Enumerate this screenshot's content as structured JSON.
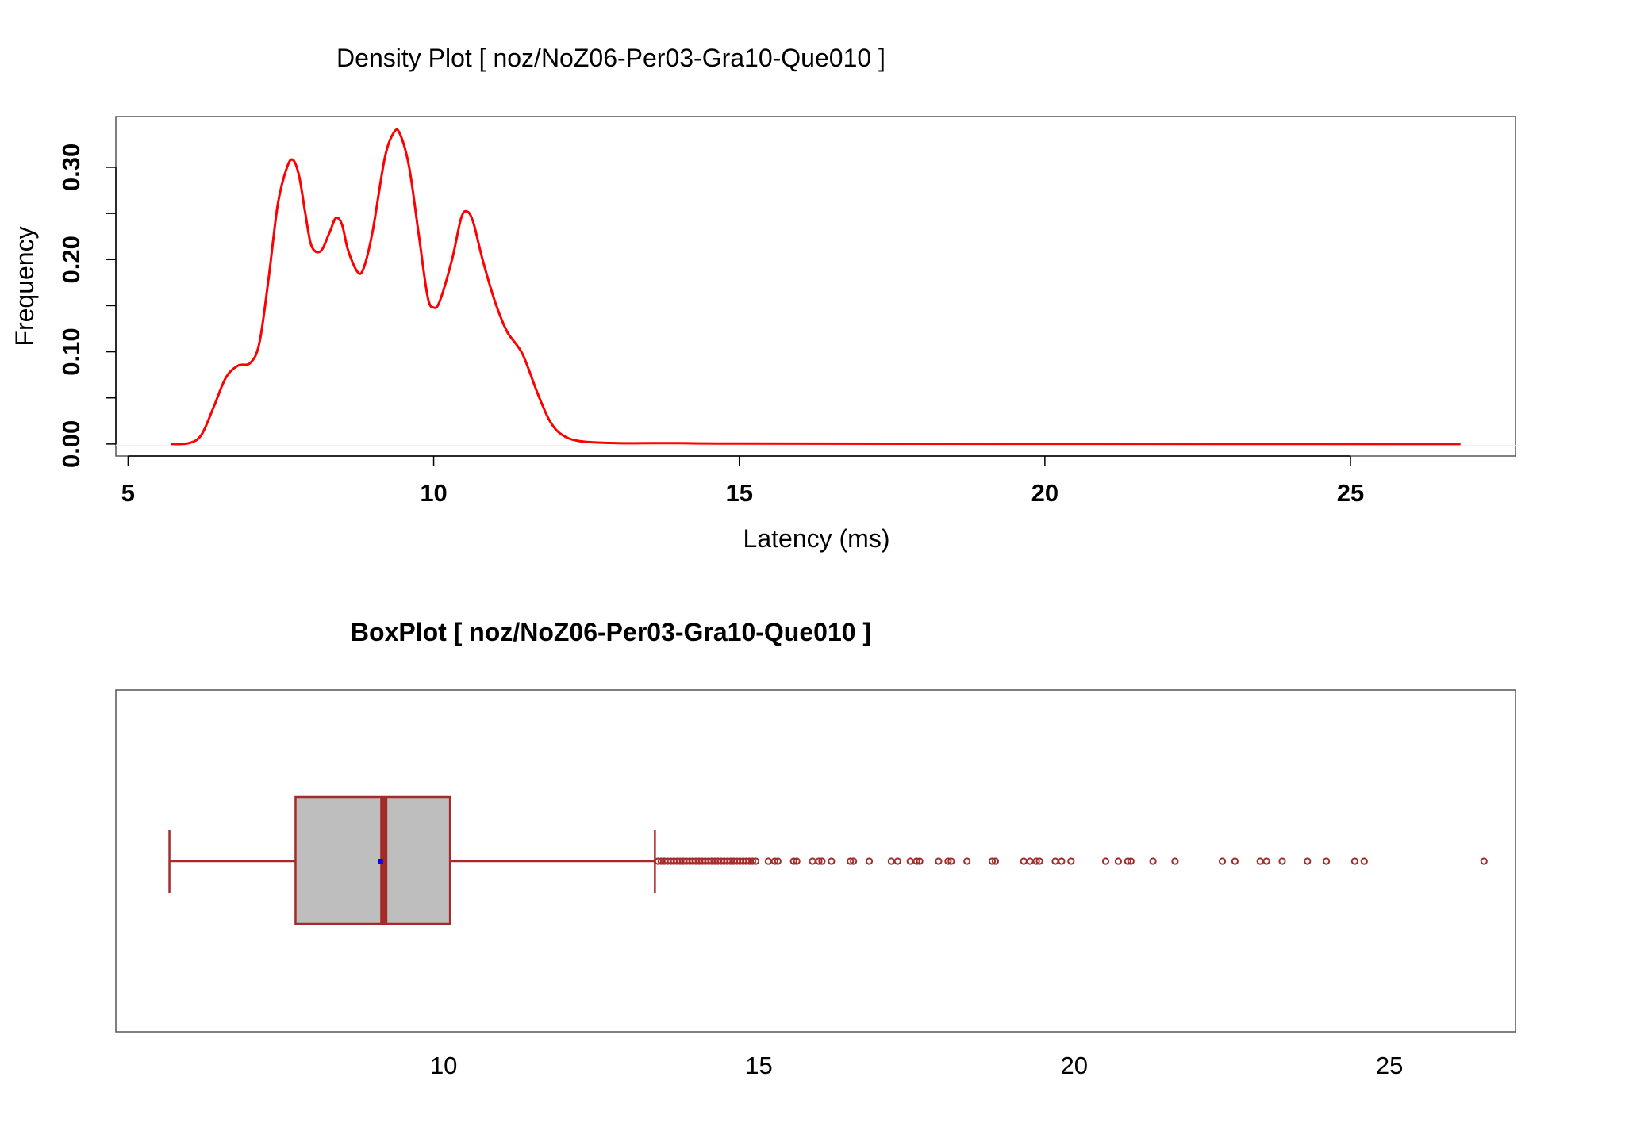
{
  "chart_data": [
    {
      "type": "line",
      "title": "Density Plot [ noz/NoZ06-Per03-Gra10-Que010 ]",
      "xlabel": "Latency (ms)",
      "ylabel": "Frequency",
      "xlim": [
        4.8,
        27.7
      ],
      "ylim": [
        -0.013,
        0.355
      ],
      "x_ticks": [
        "5",
        "10",
        "15",
        "20",
        "25"
      ],
      "y_ticks": [
        "0.00",
        "0.10",
        "0.20",
        "0.30"
      ],
      "grid": false,
      "line_color": "#ff0000",
      "series": [
        {
          "points": [
            [
              5.7,
              0.0
            ],
            [
              6.0,
              0.001
            ],
            [
              6.2,
              0.01
            ],
            [
              6.4,
              0.04
            ],
            [
              6.6,
              0.072
            ],
            [
              6.8,
              0.085
            ],
            [
              7.0,
              0.088
            ],
            [
              7.15,
              0.11
            ],
            [
              7.3,
              0.18
            ],
            [
              7.45,
              0.26
            ],
            [
              7.6,
              0.3
            ],
            [
              7.7,
              0.308
            ],
            [
              7.8,
              0.29
            ],
            [
              7.9,
              0.25
            ],
            [
              8.0,
              0.215
            ],
            [
              8.15,
              0.209
            ],
            [
              8.3,
              0.23
            ],
            [
              8.4,
              0.245
            ],
            [
              8.5,
              0.238
            ],
            [
              8.6,
              0.21
            ],
            [
              8.75,
              0.187
            ],
            [
              8.85,
              0.19
            ],
            [
              9.0,
              0.23
            ],
            [
              9.2,
              0.31
            ],
            [
              9.35,
              0.338
            ],
            [
              9.45,
              0.336
            ],
            [
              9.6,
              0.3
            ],
            [
              9.75,
              0.23
            ],
            [
              9.9,
              0.16
            ],
            [
              10.0,
              0.148
            ],
            [
              10.1,
              0.155
            ],
            [
              10.3,
              0.2
            ],
            [
              10.45,
              0.245
            ],
            [
              10.55,
              0.252
            ],
            [
              10.65,
              0.24
            ],
            [
              10.8,
              0.2
            ],
            [
              11.0,
              0.155
            ],
            [
              11.2,
              0.122
            ],
            [
              11.45,
              0.098
            ],
            [
              11.7,
              0.055
            ],
            [
              11.9,
              0.025
            ],
            [
              12.1,
              0.01
            ],
            [
              12.4,
              0.003
            ],
            [
              13.0,
              0.001
            ],
            [
              14.0,
              0.001
            ],
            [
              15.0,
              0.0005
            ],
            [
              20.0,
              0.0002
            ],
            [
              26.8,
              0.0
            ]
          ]
        }
      ]
    },
    {
      "type": "boxplot",
      "title": "BoxPlot [ noz/NoZ06-Per03-Gra10-Que010 ]",
      "xlabel": "",
      "xlim": [
        4.8,
        27.0
      ],
      "x_ticks": [
        "10",
        "15",
        "20",
        "25"
      ],
      "box_color": "#a52a2a",
      "fill_color": "#bebebe",
      "mean_color": "#0000ff",
      "whisker_low": 5.65,
      "q1": 7.65,
      "median": 9.05,
      "mean": 9.0,
      "q3": 10.1,
      "whisker_high": 13.35,
      "outliers": [
        13.4,
        13.45,
        13.5,
        13.55,
        13.6,
        13.65,
        13.7,
        13.75,
        13.8,
        13.85,
        13.9,
        13.95,
        14.0,
        14.05,
        14.1,
        14.15,
        14.2,
        14.25,
        14.3,
        14.35,
        14.4,
        14.45,
        14.5,
        14.55,
        14.6,
        14.65,
        14.7,
        14.75,
        14.8,
        14.85,
        14.9,
        14.95,
        15.15,
        15.25,
        15.3,
        15.55,
        15.6,
        15.85,
        15.95,
        16.0,
        16.15,
        16.45,
        16.5,
        16.75,
        17.1,
        17.2,
        17.4,
        17.5,
        17.55,
        17.85,
        18.0,
        18.05,
        18.3,
        18.7,
        18.75,
        19.2,
        19.3,
        19.4,
        19.45,
        19.7,
        19.8,
        19.95,
        20.5,
        20.7,
        20.85,
        20.9,
        21.25,
        21.6,
        22.35,
        22.55,
        22.95,
        23.05,
        23.3,
        23.7,
        24.0,
        24.45,
        24.6,
        26.5
      ]
    }
  ]
}
